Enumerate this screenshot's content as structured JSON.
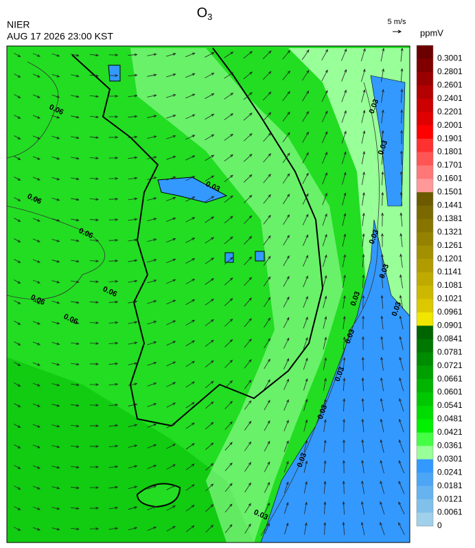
{
  "header": {
    "title": {
      "main": "O",
      "sub": "3"
    },
    "agency": "NIER",
    "datetime": "AUG 17 2026 23:00 KST",
    "wind_scale": "5 m/s"
  },
  "colorbar": {
    "unit": "ppmV",
    "labels": [
      "0.3001",
      "0.2801",
      "0.2601",
      "0.2401",
      "0.2201",
      "0.2001",
      "0.1901",
      "0.1801",
      "0.1701",
      "0.1601",
      "0.1501",
      "0.1441",
      "0.1381",
      "0.1321",
      "0.1261",
      "0.1201",
      "0.1141",
      "0.1081",
      "0.1021",
      "0.0961",
      "0.0901",
      "0.0841",
      "0.0781",
      "0.0721",
      "0.0661",
      "0.0601",
      "0.0541",
      "0.0481",
      "0.0421",
      "0.0361",
      "0.0301",
      "0.0241",
      "0.0181",
      "0.0121",
      "0.0061",
      "0"
    ],
    "colors": [
      "#6b0000",
      "#800000",
      "#990000",
      "#b30000",
      "#cc0000",
      "#e00000",
      "#ff0000",
      "#ff3030",
      "#ff5555",
      "#ff7777",
      "#ff9999",
      "#6b5a00",
      "#7a6800",
      "#877500",
      "#958200",
      "#a39000",
      "#b09c00",
      "#bfaa00",
      "#ccb800",
      "#dcc800",
      "#f0e600",
      "#006400",
      "#007800",
      "#008c00",
      "#00a000",
      "#00b400",
      "#00c800",
      "#00dc00",
      "#00f000",
      "#44ff44",
      "#99ff99",
      "#3399ff",
      "#4da6f5",
      "#66b3f0",
      "#80c0ea",
      "#a0d0ea"
    ]
  },
  "map": {
    "contour_labels": [
      "0.06",
      "0.06",
      "0.06",
      "0.06",
      "0.06",
      "0.06",
      "0.03",
      "0.03",
      "0.03",
      "0.03",
      "0.03",
      "0.03",
      "0.03",
      "0.03",
      "0.03",
      "0.03",
      "0.03",
      "0.03"
    ]
  }
}
